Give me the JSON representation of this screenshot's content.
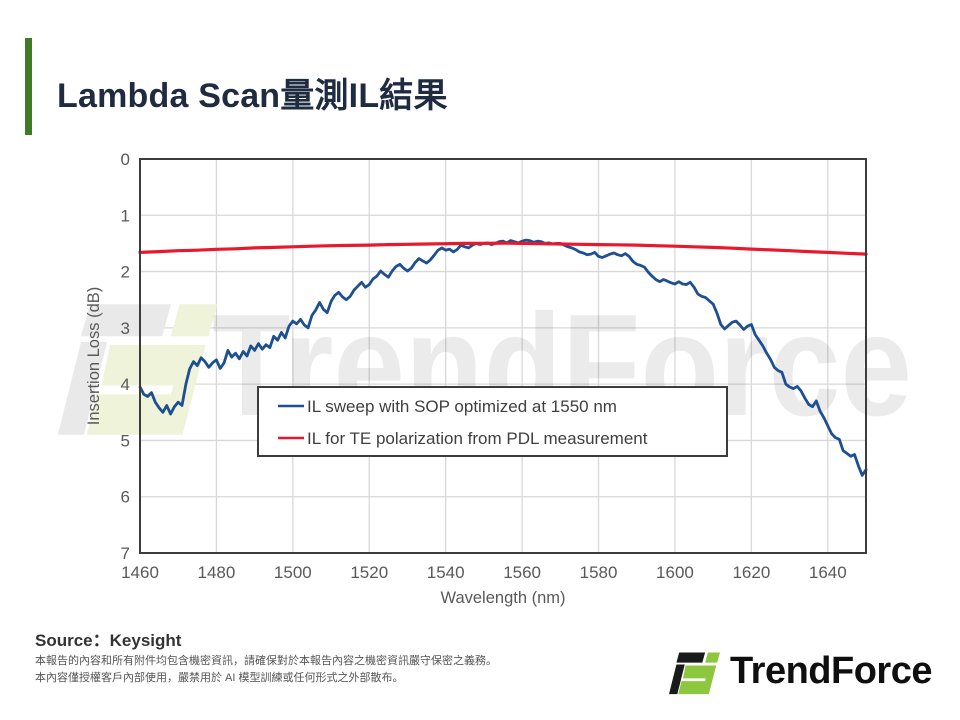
{
  "slide": {
    "title": "Lambda Scan量測IL結果",
    "accent_color": "#3f7a28"
  },
  "chart_data": {
    "type": "line",
    "title": "",
    "xlabel": "Wavelength (nm)",
    "ylabel": "Insertion Loss (dB)",
    "xlim": [
      1460,
      1650
    ],
    "ylim": [
      0,
      7
    ],
    "y_axis_inverted": true,
    "grid": true,
    "x_ticks": [
      1460,
      1480,
      1500,
      1520,
      1540,
      1560,
      1580,
      1600,
      1620,
      1640
    ],
    "y_ticks": [
      0,
      1,
      2,
      3,
      4,
      5,
      6,
      7
    ],
    "legend_position": "inside-lower-center",
    "watermark_text": "TrendForce",
    "series": [
      {
        "name": "IL sweep with SOP optimized at 1550 nm",
        "color": "#1d4f91",
        "points": [
          [
            1460,
            4.05
          ],
          [
            1461,
            4.18
          ],
          [
            1462,
            4.22
          ],
          [
            1463,
            4.15
          ],
          [
            1464,
            4.32
          ],
          [
            1465,
            4.42
          ],
          [
            1466,
            4.5
          ],
          [
            1467,
            4.38
          ],
          [
            1468,
            4.53
          ],
          [
            1469,
            4.4
          ],
          [
            1470,
            4.32
          ],
          [
            1471,
            4.38
          ],
          [
            1472,
            4.0
          ],
          [
            1473,
            3.73
          ],
          [
            1474,
            3.6
          ],
          [
            1475,
            3.67
          ],
          [
            1476,
            3.53
          ],
          [
            1477,
            3.6
          ],
          [
            1478,
            3.7
          ],
          [
            1479,
            3.62
          ],
          [
            1480,
            3.57
          ],
          [
            1481,
            3.72
          ],
          [
            1482,
            3.62
          ],
          [
            1483,
            3.4
          ],
          [
            1484,
            3.52
          ],
          [
            1485,
            3.45
          ],
          [
            1486,
            3.55
          ],
          [
            1487,
            3.42
          ],
          [
            1488,
            3.5
          ],
          [
            1489,
            3.32
          ],
          [
            1490,
            3.4
          ],
          [
            1491,
            3.28
          ],
          [
            1492,
            3.38
          ],
          [
            1493,
            3.3
          ],
          [
            1494,
            3.35
          ],
          [
            1495,
            3.15
          ],
          [
            1496,
            3.22
          ],
          [
            1497,
            3.08
          ],
          [
            1498,
            3.18
          ],
          [
            1499,
            2.97
          ],
          [
            1500,
            2.88
          ],
          [
            1501,
            2.93
          ],
          [
            1502,
            2.85
          ],
          [
            1503,
            2.95
          ],
          [
            1504,
            3.0
          ],
          [
            1505,
            2.78
          ],
          [
            1506,
            2.68
          ],
          [
            1507,
            2.55
          ],
          [
            1508,
            2.67
          ],
          [
            1509,
            2.73
          ],
          [
            1510,
            2.53
          ],
          [
            1511,
            2.42
          ],
          [
            1512,
            2.37
          ],
          [
            1513,
            2.45
          ],
          [
            1514,
            2.5
          ],
          [
            1515,
            2.44
          ],
          [
            1516,
            2.33
          ],
          [
            1517,
            2.26
          ],
          [
            1518,
            2.19
          ],
          [
            1519,
            2.28
          ],
          [
            1520,
            2.23
          ],
          [
            1521,
            2.13
          ],
          [
            1522,
            2.08
          ],
          [
            1523,
            1.99
          ],
          [
            1524,
            2.05
          ],
          [
            1525,
            2.1
          ],
          [
            1526,
            1.99
          ],
          [
            1527,
            1.91
          ],
          [
            1528,
            1.87
          ],
          [
            1529,
            1.94
          ],
          [
            1530,
            1.99
          ],
          [
            1531,
            1.94
          ],
          [
            1532,
            1.84
          ],
          [
            1533,
            1.77
          ],
          [
            1534,
            1.81
          ],
          [
            1535,
            1.85
          ],
          [
            1536,
            1.79
          ],
          [
            1537,
            1.71
          ],
          [
            1538,
            1.62
          ],
          [
            1539,
            1.58
          ],
          [
            1540,
            1.62
          ],
          [
            1541,
            1.6
          ],
          [
            1542,
            1.65
          ],
          [
            1543,
            1.61
          ],
          [
            1544,
            1.53
          ],
          [
            1545,
            1.56
          ],
          [
            1546,
            1.58
          ],
          [
            1547,
            1.53
          ],
          [
            1548,
            1.5
          ],
          [
            1549,
            1.52
          ],
          [
            1550,
            1.5
          ],
          [
            1551,
            1.49
          ],
          [
            1552,
            1.52
          ],
          [
            1553,
            1.5
          ],
          [
            1554,
            1.47
          ],
          [
            1555,
            1.46
          ],
          [
            1556,
            1.49
          ],
          [
            1557,
            1.45
          ],
          [
            1558,
            1.47
          ],
          [
            1559,
            1.49
          ],
          [
            1560,
            1.46
          ],
          [
            1561,
            1.44
          ],
          [
            1562,
            1.45
          ],
          [
            1563,
            1.48
          ],
          [
            1564,
            1.46
          ],
          [
            1565,
            1.47
          ],
          [
            1566,
            1.5
          ],
          [
            1567,
            1.49
          ],
          [
            1568,
            1.51
          ],
          [
            1569,
            1.5
          ],
          [
            1570,
            1.5
          ],
          [
            1571,
            1.53
          ],
          [
            1572,
            1.56
          ],
          [
            1573,
            1.58
          ],
          [
            1574,
            1.61
          ],
          [
            1575,
            1.65
          ],
          [
            1576,
            1.67
          ],
          [
            1577,
            1.7
          ],
          [
            1578,
            1.69
          ],
          [
            1579,
            1.66
          ],
          [
            1580,
            1.73
          ],
          [
            1581,
            1.75
          ],
          [
            1582,
            1.72
          ],
          [
            1583,
            1.69
          ],
          [
            1584,
            1.67
          ],
          [
            1585,
            1.7
          ],
          [
            1586,
            1.72
          ],
          [
            1587,
            1.68
          ],
          [
            1588,
            1.73
          ],
          [
            1589,
            1.82
          ],
          [
            1590,
            1.87
          ],
          [
            1591,
            1.89
          ],
          [
            1592,
            1.92
          ],
          [
            1593,
            2.01
          ],
          [
            1594,
            2.08
          ],
          [
            1595,
            2.14
          ],
          [
            1596,
            2.18
          ],
          [
            1597,
            2.14
          ],
          [
            1598,
            2.17
          ],
          [
            1599,
            2.2
          ],
          [
            1600,
            2.22
          ],
          [
            1601,
            2.18
          ],
          [
            1602,
            2.22
          ],
          [
            1603,
            2.23
          ],
          [
            1604,
            2.19
          ],
          [
            1605,
            2.28
          ],
          [
            1606,
            2.4
          ],
          [
            1607,
            2.44
          ],
          [
            1608,
            2.46
          ],
          [
            1609,
            2.52
          ],
          [
            1610,
            2.58
          ],
          [
            1611,
            2.74
          ],
          [
            1612,
            2.94
          ],
          [
            1613,
            3.02
          ],
          [
            1614,
            2.96
          ],
          [
            1615,
            2.9
          ],
          [
            1616,
            2.88
          ],
          [
            1617,
            2.95
          ],
          [
            1618,
            3.03
          ],
          [
            1619,
            2.97
          ],
          [
            1620,
            2.94
          ],
          [
            1621,
            3.12
          ],
          [
            1622,
            3.22
          ],
          [
            1623,
            3.32
          ],
          [
            1624,
            3.45
          ],
          [
            1625,
            3.56
          ],
          [
            1626,
            3.7
          ],
          [
            1627,
            3.76
          ],
          [
            1628,
            3.79
          ],
          [
            1629,
            4.0
          ],
          [
            1630,
            4.05
          ],
          [
            1631,
            4.08
          ],
          [
            1632,
            4.04
          ],
          [
            1633,
            4.12
          ],
          [
            1634,
            4.25
          ],
          [
            1635,
            4.36
          ],
          [
            1636,
            4.4
          ],
          [
            1637,
            4.3
          ],
          [
            1638,
            4.48
          ],
          [
            1639,
            4.6
          ],
          [
            1640,
            4.74
          ],
          [
            1641,
            4.88
          ],
          [
            1642,
            4.95
          ],
          [
            1643,
            4.98
          ],
          [
            1644,
            5.18
          ],
          [
            1645,
            5.23
          ],
          [
            1646,
            5.28
          ],
          [
            1647,
            5.25
          ],
          [
            1648,
            5.45
          ],
          [
            1649,
            5.62
          ],
          [
            1650,
            5.52
          ]
        ]
      },
      {
        "name": "IL for TE polarization from PDL measurement",
        "color": "#e8192c",
        "points": [
          [
            1460,
            1.66
          ],
          [
            1465,
            1.645
          ],
          [
            1470,
            1.63
          ],
          [
            1475,
            1.62
          ],
          [
            1480,
            1.605
          ],
          [
            1485,
            1.595
          ],
          [
            1490,
            1.58
          ],
          [
            1495,
            1.57
          ],
          [
            1500,
            1.56
          ],
          [
            1505,
            1.55
          ],
          [
            1510,
            1.54
          ],
          [
            1515,
            1.535
          ],
          [
            1520,
            1.53
          ],
          [
            1525,
            1.52
          ],
          [
            1530,
            1.515
          ],
          [
            1535,
            1.51
          ],
          [
            1540,
            1.505
          ],
          [
            1545,
            1.5
          ],
          [
            1550,
            1.5
          ],
          [
            1555,
            1.495
          ],
          [
            1560,
            1.5
          ],
          [
            1565,
            1.505
          ],
          [
            1570,
            1.51
          ],
          [
            1575,
            1.515
          ],
          [
            1580,
            1.52
          ],
          [
            1585,
            1.525
          ],
          [
            1590,
            1.53
          ],
          [
            1595,
            1.54
          ],
          [
            1600,
            1.55
          ],
          [
            1605,
            1.56
          ],
          [
            1610,
            1.57
          ],
          [
            1615,
            1.585
          ],
          [
            1620,
            1.6
          ],
          [
            1625,
            1.615
          ],
          [
            1630,
            1.63
          ],
          [
            1635,
            1.645
          ],
          [
            1640,
            1.66
          ],
          [
            1645,
            1.675
          ],
          [
            1650,
            1.69
          ]
        ]
      }
    ]
  },
  "footer": {
    "source_label": "Source：Keysight",
    "disclaimer_line1": "本報告的內容和所有附件均包含機密資訊，請確保對於本報告內容之機密資訊嚴守保密之義務。",
    "disclaimer_line2": "本內容僅授權客戶內部使用，嚴禁用於 AI 模型訓練或任何形式之外部散布。",
    "logo_text": "TrendForce",
    "logo_black": "#1a1a1a",
    "logo_green": "#8dc63f"
  }
}
